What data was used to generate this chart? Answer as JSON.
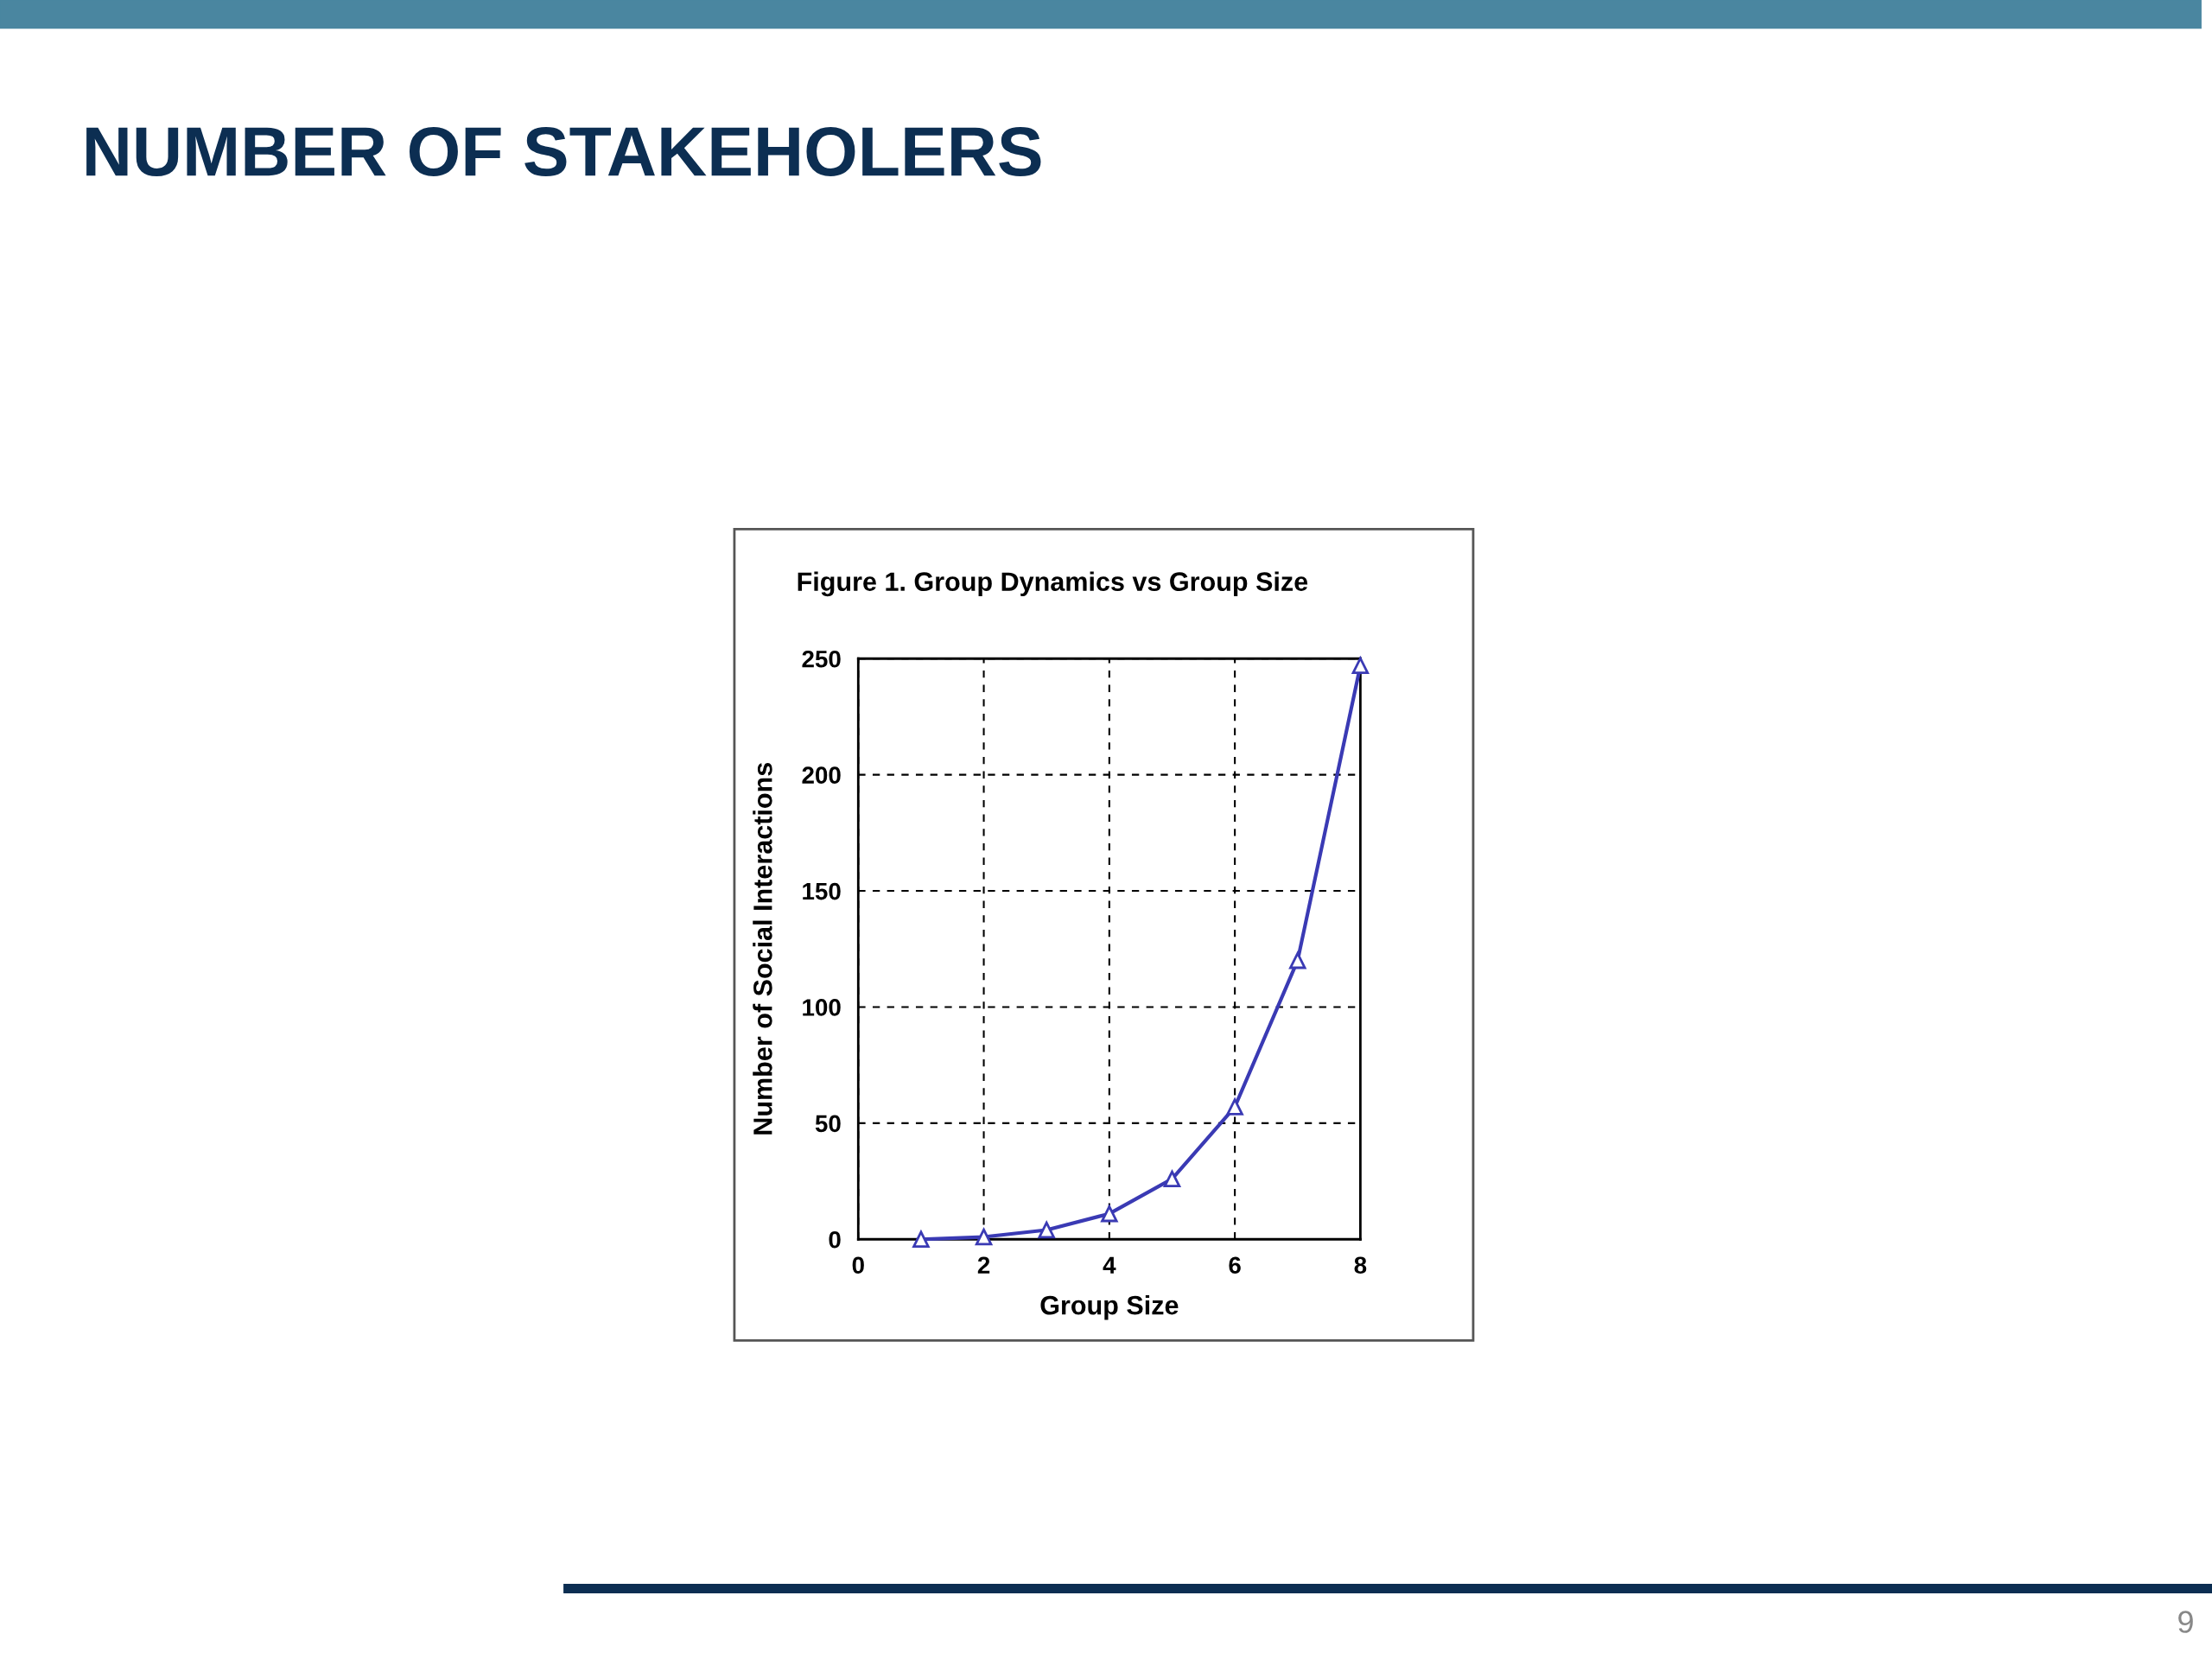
{
  "chart_data": {
    "type": "line",
    "title": "NUMBER OF STAKEHOLERS",
    "subtitle": "Figure 1. Group Dynamics vs Group Size",
    "xlabel": "Group Size",
    "ylabel": "Number of Social Interactions",
    "x": [
      1,
      2,
      3,
      4,
      5,
      6,
      7,
      8
    ],
    "series": [
      {
        "color": "#3a3ab4",
        "values": [
          0,
          1,
          4,
          11,
          26,
          57,
          120,
          247
        ]
      }
    ],
    "xlim": [
      0,
      8
    ],
    "xticks": [
      0,
      2,
      4,
      6,
      8
    ],
    "ylim": [
      0,
      250
    ],
    "yticks": [
      0,
      50,
      100,
      150,
      200,
      250
    ],
    "grid": true,
    "marker": "triangle",
    "line_style": "solid",
    "legend": false,
    "annotations": [
      "9"
    ]
  }
}
